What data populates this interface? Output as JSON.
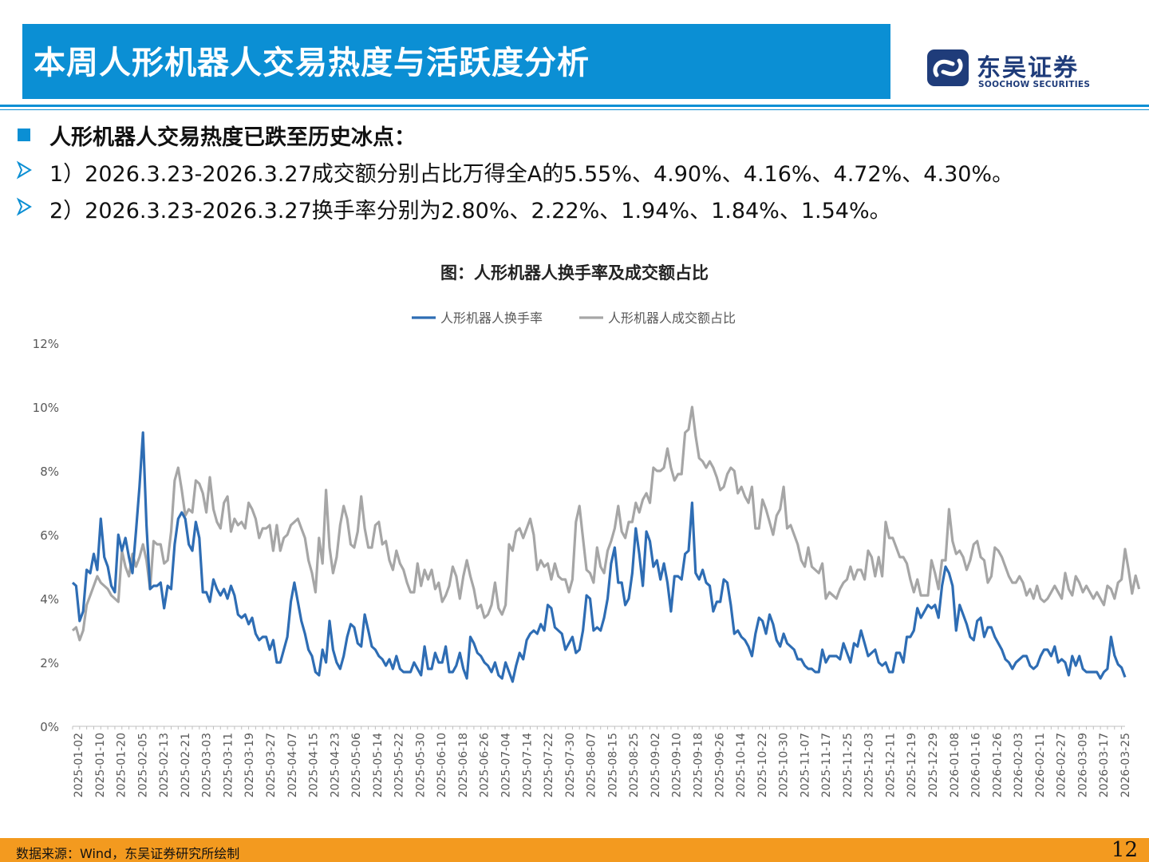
{
  "header": {
    "title": "本周人形机器人交易热度与活跃度分析",
    "logo_cn": "东吴证券",
    "logo_en": "SOOCHOW SECURITIES"
  },
  "bullets": {
    "heading": "人形机器人交易热度已跌至历史冰点：",
    "items": [
      "1）2026.3.23-2026.3.27成交额分别占比万得全A的5.55%、4.90%、4.16%、4.72%、4.30%。",
      "2）2026.3.23-2026.3.27换手率分别为2.80%、2.22%、1.94%、1.84%、1.54%。"
    ]
  },
  "chart_title": "图：人形机器人换手率及成交额占比",
  "chart_data": {
    "type": "line",
    "title": "图：人形机器人换手率及成交额占比",
    "xlabel": "",
    "ylabel": "",
    "ylim": [
      0,
      12
    ],
    "yticks": [
      "0%",
      "2%",
      "4%",
      "6%",
      "8%",
      "10%",
      "12%"
    ],
    "legend_position": "top-center",
    "grid": false,
    "x_tick_labels": [
      "2025-01-02",
      "2025-01-10",
      "2025-01-20",
      "2025-02-05",
      "2025-02-13",
      "2025-02-21",
      "2025-03-03",
      "2025-03-11",
      "2025-03-19",
      "2025-03-27",
      "2025-04-07",
      "2025-04-15",
      "2025-04-23",
      "2025-05-06",
      "2025-05-14",
      "2025-05-22",
      "2025-05-30",
      "2025-06-10",
      "2025-06-18",
      "2025-06-26",
      "2025-07-04",
      "2025-07-14",
      "2025-07-22",
      "2025-07-30",
      "2025-08-07",
      "2025-08-15",
      "2025-08-25",
      "2025-09-02",
      "2025-09-10",
      "2025-09-18",
      "2025-09-26",
      "2025-10-14",
      "2025-10-22",
      "2025-10-30",
      "2025-11-07",
      "2025-11-17",
      "2025-11-25",
      "2025-12-03",
      "2025-12-11",
      "2025-12-19",
      "2025-12-29",
      "2026-01-08",
      "2026-01-16",
      "2026-01-26",
      "2026-02-03",
      "2026-02-11",
      "2026-02-27",
      "2026-03-09",
      "2026-03-17",
      "2026-03-25"
    ],
    "series": [
      {
        "name": "人形机器人换手率",
        "color": "#2e6db4",
        "values": [
          4.5,
          4.4,
          3.3,
          3.6,
          4.9,
          4.8,
          5.4,
          4.9,
          6.5,
          5.3,
          5.0,
          4.4,
          4.2,
          6.0,
          5.5,
          5.9,
          5.3,
          4.8,
          6.1,
          7.5,
          9.2,
          6.3,
          4.3,
          4.4,
          4.4,
          4.5,
          3.7,
          4.4,
          4.3,
          5.7,
          6.5,
          6.7,
          6.5,
          5.7,
          5.5,
          6.4,
          5.9,
          4.2,
          4.2,
          3.9,
          4.6,
          4.3,
          4.1,
          4.3,
          4.0,
          4.4,
          4.1,
          3.5,
          3.4,
          3.5,
          3.2,
          3.4,
          2.9,
          2.7,
          2.8,
          2.8,
          2.4,
          2.7,
          2.0,
          2.0,
          2.4,
          2.8,
          3.9,
          4.5,
          3.9,
          3.3,
          2.9,
          2.4,
          2.2,
          1.7,
          1.6,
          2.4,
          2.0,
          3.3,
          2.4,
          2.0,
          1.8,
          2.2,
          2.8,
          3.2,
          3.1,
          2.6,
          2.5,
          3.5,
          3.0,
          2.5,
          2.4,
          2.2,
          2.1,
          1.9,
          2.1,
          1.8,
          2.2,
          1.8,
          1.7,
          1.7,
          1.7,
          2.0,
          1.8,
          1.6,
          2.5,
          1.8,
          1.8,
          2.3,
          2.0,
          2.0,
          2.5,
          1.7,
          1.7,
          1.9,
          2.3,
          1.8,
          1.5,
          2.8,
          2.6,
          2.3,
          2.2,
          2.0,
          1.9,
          1.7,
          2.0,
          1.6,
          1.5,
          2.0,
          1.7,
          1.4,
          1.9,
          2.3,
          2.1,
          2.7,
          2.9,
          3.0,
          2.9,
          3.2,
          3.0,
          3.8,
          3.7,
          3.1,
          3.0,
          2.9,
          2.4,
          2.6,
          2.8,
          2.3,
          2.4,
          3.0,
          4.1,
          4.0,
          3.0,
          3.1,
          3.0,
          3.4,
          4.0,
          5.1,
          5.6,
          4.5,
          4.5,
          3.8,
          4.0,
          4.8,
          6.2,
          5.4,
          4.4,
          6.1,
          5.8,
          5.0,
          5.2,
          4.6,
          5.1,
          4.5,
          3.6,
          4.7,
          4.7,
          4.6,
          5.4,
          5.5,
          7.0,
          4.8,
          4.6,
          4.9,
          4.5,
          4.4,
          3.6,
          3.9,
          3.9,
          4.6,
          4.5,
          3.8,
          2.9,
          3.0,
          2.8,
          2.7,
          2.5,
          2.2,
          2.9,
          3.4,
          3.3,
          2.9,
          3.5,
          3.2,
          2.7,
          2.5,
          2.9,
          2.6,
          2.5,
          2.4,
          2.1,
          2.1,
          1.9,
          1.8,
          1.8,
          1.7,
          1.7,
          2.4,
          2.0,
          2.2,
          2.2,
          2.2,
          2.1,
          2.6,
          2.3,
          2.0,
          2.6,
          2.5,
          3.0,
          2.6,
          2.2,
          2.3,
          2.4,
          2.0,
          1.9,
          2.0,
          1.7,
          1.7,
          2.3,
          2.3,
          2.0,
          2.8,
          2.8,
          3.0,
          3.7,
          3.4,
          3.6,
          3.8,
          3.7,
          3.8,
          3.4,
          4.4,
          5.0,
          4.8,
          4.4,
          3.0,
          3.8,
          3.5,
          3.2,
          2.8,
          2.7,
          3.3,
          3.4,
          2.8,
          3.1,
          3.1,
          2.8,
          2.6,
          2.4,
          2.1,
          2.0,
          1.8,
          2.0,
          2.1,
          2.2,
          2.2,
          1.9,
          1.8,
          1.9,
          2.2,
          2.4,
          2.4,
          2.2,
          2.5,
          2.0,
          2.1,
          2.0,
          1.6,
          2.2,
          1.9,
          2.2,
          1.8,
          1.7,
          1.7,
          1.7,
          1.7,
          1.5,
          1.7,
          1.8,
          2.8,
          2.22,
          1.94,
          1.84,
          1.54
        ]
      },
      {
        "name": "人形机器人成交额占比",
        "color": "#a6a6a6",
        "values": [
          3.0,
          3.1,
          2.7,
          3.0,
          3.8,
          4.1,
          4.4,
          4.7,
          4.5,
          4.4,
          4.3,
          4.1,
          4.0,
          3.9,
          5.5,
          5.0,
          4.7,
          5.4,
          5.0,
          5.3,
          5.7,
          5.2,
          4.3,
          5.8,
          5.7,
          5.7,
          5.1,
          5.2,
          6.1,
          7.7,
          8.1,
          7.4,
          6.6,
          6.8,
          6.7,
          7.7,
          7.6,
          7.3,
          6.7,
          7.8,
          6.8,
          6.4,
          6.2,
          7.0,
          7.2,
          6.1,
          6.5,
          6.3,
          6.4,
          6.2,
          7.0,
          6.8,
          6.5,
          5.9,
          6.2,
          6.2,
          6.3,
          5.5,
          6.3,
          5.5,
          5.9,
          6.0,
          6.3,
          6.4,
          6.5,
          6.2,
          5.9,
          5.2,
          4.8,
          4.2,
          5.9,
          5.1,
          7.4,
          5.6,
          4.8,
          5.3,
          6.3,
          6.9,
          6.5,
          5.7,
          5.6,
          6.1,
          7.2,
          6.2,
          5.6,
          5.6,
          6.3,
          6.4,
          5.7,
          5.8,
          5.2,
          4.9,
          5.5,
          5.1,
          4.9,
          4.5,
          4.2,
          4.2,
          5.1,
          4.4,
          4.9,
          4.6,
          4.9,
          4.3,
          4.5,
          3.9,
          4.1,
          4.4,
          5.0,
          4.7,
          4.0,
          4.7,
          5.2,
          4.7,
          4.3,
          3.7,
          3.8,
          3.4,
          3.5,
          3.8,
          4.5,
          3.7,
          3.5,
          3.8,
          5.7,
          5.5,
          6.1,
          6.2,
          5.9,
          6.2,
          6.5,
          6.0,
          4.9,
          5.2,
          5.0,
          5.1,
          4.6,
          5.1,
          4.7,
          4.6,
          4.6,
          4.2,
          4.6,
          6.4,
          6.9,
          5.9,
          4.9,
          4.8,
          4.5,
          5.6,
          5.0,
          4.8,
          5.5,
          5.8,
          6.2,
          6.9,
          6.1,
          5.9,
          6.4,
          6.4,
          7.0,
          6.7,
          7.1,
          7.3,
          7.0,
          8.1,
          8.0,
          8.0,
          8.1,
          8.7,
          8.1,
          7.7,
          7.9,
          7.9,
          9.2,
          9.3,
          10.0,
          9.1,
          8.4,
          8.3,
          8.1,
          8.3,
          8.1,
          7.8,
          7.4,
          7.5,
          7.9,
          8.1,
          8.0,
          7.3,
          7.5,
          7.2,
          7.0,
          7.5,
          6.2,
          6.2,
          7.1,
          6.8,
          6.4,
          6.0,
          6.6,
          6.8,
          7.5,
          6.2,
          6.3,
          6.0,
          5.7,
          5.2,
          5.0,
          5.6,
          5.0,
          4.9,
          4.8,
          5.1,
          4.0,
          4.2,
          4.1,
          4.0,
          4.3,
          4.5,
          4.6,
          5.0,
          4.6,
          4.9,
          4.9,
          4.6,
          5.5,
          5.3,
          4.7,
          5.3,
          4.7,
          6.4,
          5.9,
          5.9,
          5.6,
          5.3,
          5.3,
          5.1,
          4.6,
          4.2,
          4.6,
          4.1,
          4.1,
          4.1,
          5.2,
          4.8,
          4.3,
          5.2,
          5.2,
          6.8,
          5.8,
          5.4,
          5.5,
          5.3,
          4.9,
          5.2,
          5.7,
          5.8,
          5.3,
          5.2,
          4.5,
          4.7,
          5.6,
          5.5,
          5.3,
          5.0,
          4.7,
          4.5,
          4.5,
          4.7,
          4.5,
          4.1,
          4.3,
          4.0,
          4.4,
          4.0,
          3.9,
          4.0,
          4.2,
          4.4,
          4.2,
          4.0,
          4.8,
          4.3,
          4.1,
          4.7,
          4.5,
          4.2,
          4.4,
          4.2,
          4.0,
          4.2,
          4.0,
          3.8,
          4.4,
          4.3,
          4.0,
          4.5,
          4.6,
          5.55,
          4.9,
          4.16,
          4.72,
          4.3
        ]
      }
    ]
  },
  "footer": {
    "source_note": "数据来源：Wind，东吴证券研究所绘制",
    "page_number": "12"
  },
  "colors": {
    "brand_blue": "#0b8fd4",
    "footer_orange": "#f39a1f"
  }
}
